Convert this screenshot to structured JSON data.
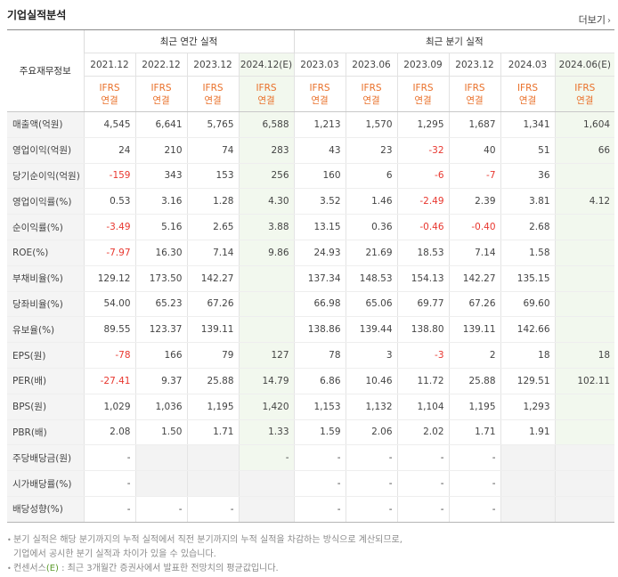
{
  "title": "기업실적분석",
  "more_label": "더보기",
  "header": {
    "row_label": "주요재무정보",
    "annual_title": "최근 연간 실적",
    "quarter_title": "최근 분기 실적",
    "periods": [
      "2021.12",
      "2022.12",
      "2023.12",
      "2024.12(E)",
      "2023.03",
      "2023.06",
      "2023.09",
      "2023.12",
      "2024.03",
      "2024.06(E)"
    ],
    "ifrs": "IFRS",
    "consolidated": "연결"
  },
  "rows": [
    {
      "label": "매출액(억원)",
      "values": [
        "4,545",
        "6,641",
        "5,765",
        "6,588",
        "1,213",
        "1,570",
        "1,295",
        "1,687",
        "1,341",
        "1,604"
      ]
    },
    {
      "label": "영업이익(억원)",
      "values": [
        "24",
        "210",
        "74",
        "283",
        "43",
        "23",
        "-32",
        "40",
        "51",
        "66"
      ]
    },
    {
      "label": "당기순이익(억원)",
      "values": [
        "-159",
        "343",
        "153",
        "256",
        "160",
        "6",
        "-6",
        "-7",
        "36",
        ""
      ]
    },
    {
      "label": "영업이익률(%)",
      "values": [
        "0.53",
        "3.16",
        "1.28",
        "4.30",
        "3.52",
        "1.46",
        "-2.49",
        "2.39",
        "3.81",
        "4.12"
      ]
    },
    {
      "label": "순이익률(%)",
      "values": [
        "-3.49",
        "5.16",
        "2.65",
        "3.88",
        "13.15",
        "0.36",
        "-0.46",
        "-0.40",
        "2.68",
        ""
      ]
    },
    {
      "label": "ROE(%)",
      "values": [
        "-7.97",
        "16.30",
        "7.14",
        "9.86",
        "24.93",
        "21.69",
        "18.53",
        "7.14",
        "1.58",
        ""
      ]
    },
    {
      "label": "부채비율(%)",
      "values": [
        "129.12",
        "173.50",
        "142.27",
        "",
        "137.34",
        "148.53",
        "154.13",
        "142.27",
        "135.15",
        ""
      ]
    },
    {
      "label": "당좌비율(%)",
      "values": [
        "54.00",
        "65.23",
        "67.26",
        "",
        "66.98",
        "65.06",
        "69.77",
        "67.26",
        "69.60",
        ""
      ]
    },
    {
      "label": "유보율(%)",
      "values": [
        "89.55",
        "123.37",
        "139.11",
        "",
        "138.86",
        "139.44",
        "138.80",
        "139.11",
        "142.66",
        ""
      ]
    },
    {
      "label": "EPS(원)",
      "values": [
        "-78",
        "166",
        "79",
        "127",
        "78",
        "3",
        "-3",
        "2",
        "18",
        "18"
      ]
    },
    {
      "label": "PER(배)",
      "values": [
        "-27.41",
        "9.37",
        "25.88",
        "14.79",
        "6.86",
        "10.46",
        "11.72",
        "25.88",
        "129.51",
        "102.11"
      ]
    },
    {
      "label": "BPS(원)",
      "values": [
        "1,029",
        "1,036",
        "1,195",
        "1,420",
        "1,153",
        "1,132",
        "1,104",
        "1,195",
        "1,293",
        ""
      ]
    },
    {
      "label": "PBR(배)",
      "values": [
        "2.08",
        "1.50",
        "1.71",
        "1.33",
        "1.59",
        "2.06",
        "2.02",
        "1.71",
        "1.91",
        ""
      ]
    },
    {
      "label": "주당배당금(원)",
      "values": [
        "-",
        "",
        "",
        "-",
        "-",
        "-",
        "-",
        "-",
        "",
        ""
      ]
    },
    {
      "label": "시가배당률(%)",
      "values": [
        "-",
        "",
        "",
        "",
        "-",
        "-",
        "-",
        "-",
        "",
        ""
      ]
    },
    {
      "label": "배당성향(%)",
      "values": [
        "-",
        "-",
        "-",
        "",
        "-",
        "-",
        "-",
        "-",
        "",
        ""
      ]
    }
  ],
  "notes": {
    "line1": "분기 실적은 해당 분기까지의 누적 실적에서 직전 분기까지의 누적 실적을 차감하는 방식으로 계산되므로,",
    "line2": "기업에서 공시한 분기 실적과 차이가 있을 수 있습니다.",
    "line3_prefix": "컨센서스",
    "line3_e": "(E)",
    "line3_suffix": " : 최근 3개월간 증권사에서 발표한 전망치의 평균값입니다."
  },
  "colors": {
    "negative": "#e8372f",
    "ifrs": "#e9702a",
    "estimate_bg": "#f2f8ee",
    "label_bg": "#f4f4f4"
  }
}
